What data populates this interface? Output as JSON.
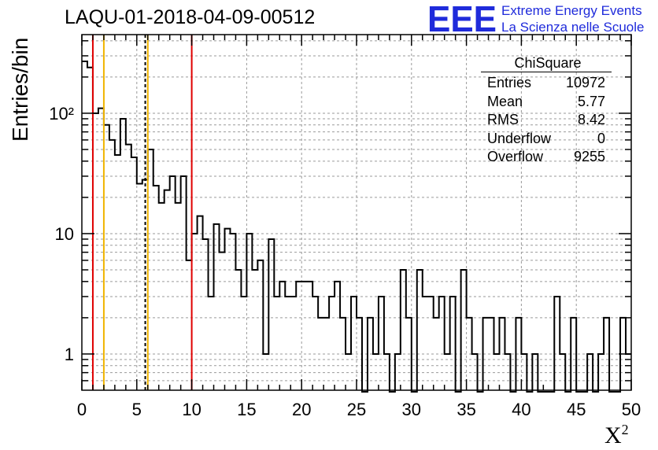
{
  "header": {
    "title": "LAQU-01-2018-04-09-00512",
    "logo_line1": "Extreme Energy Events",
    "logo_line2": "La Scienza nelle Scuole",
    "logo_letters": "EEE"
  },
  "stats_box": {
    "name": "ChiSquare",
    "rows": [
      {
        "label": "Entries",
        "value": "10972"
      },
      {
        "label": "Mean",
        "value": "5.77"
      },
      {
        "label": "RMS",
        "value": "8.42"
      },
      {
        "label": "Underflow",
        "value": "0"
      },
      {
        "label": "Overflow",
        "value": "9255"
      }
    ]
  },
  "colors": {
    "line": "#000000",
    "grid": "#9a9a9a",
    "red": "#e00000",
    "orange": "#f0b400",
    "logo": "#1f2bdb"
  },
  "chart_data": {
    "type": "histogram",
    "title": "LAQU-01-2018-04-09-00512",
    "xlabel": "Χ²",
    "ylabel": "Entries/bin",
    "xlim": [
      0,
      50
    ],
    "ylim": [
      0.5,
      450
    ],
    "yscale": "log",
    "grid": true,
    "bin_width": 0.5,
    "x_ticks": [
      "0",
      "5",
      "10",
      "15",
      "20",
      "25",
      "30",
      "35",
      "40",
      "45",
      "50"
    ],
    "y_ticks": [
      {
        "value": 1,
        "label": "1"
      },
      {
        "value": 10,
        "label": "10"
      },
      {
        "value": 100,
        "label": "10²"
      }
    ],
    "bin_counts": [
      270,
      240,
      100,
      110,
      80,
      60,
      45,
      90,
      55,
      43,
      26,
      28,
      50,
      25,
      18,
      23,
      30,
      18,
      30,
      6,
      10,
      14,
      9,
      3,
      12,
      7,
      11,
      10,
      5,
      3,
      10,
      5,
      6,
      1,
      9,
      3,
      4,
      3,
      3,
      4,
      4,
      4,
      3,
      2,
      2,
      3,
      4,
      2,
      1,
      3,
      2,
      0,
      2,
      1,
      3,
      1,
      0,
      1,
      5,
      2,
      0,
      5,
      3,
      3,
      2,
      3,
      1,
      3,
      0,
      5,
      2,
      1,
      0,
      2,
      2,
      1,
      2,
      1,
      0,
      2,
      1,
      0,
      1,
      0,
      0,
      0,
      3,
      1,
      0,
      2,
      0,
      0,
      1,
      0,
      1,
      2,
      0,
      0,
      2,
      1
    ],
    "vertical_lines": [
      {
        "x": 1,
        "color": "red",
        "style": "solid"
      },
      {
        "x": 2,
        "color": "orange",
        "style": "solid"
      },
      {
        "x": 5.77,
        "color": "black",
        "style": "dashed"
      },
      {
        "x": 6,
        "color": "orange",
        "style": "solid"
      },
      {
        "x": 10,
        "color": "red",
        "style": "solid"
      }
    ]
  }
}
